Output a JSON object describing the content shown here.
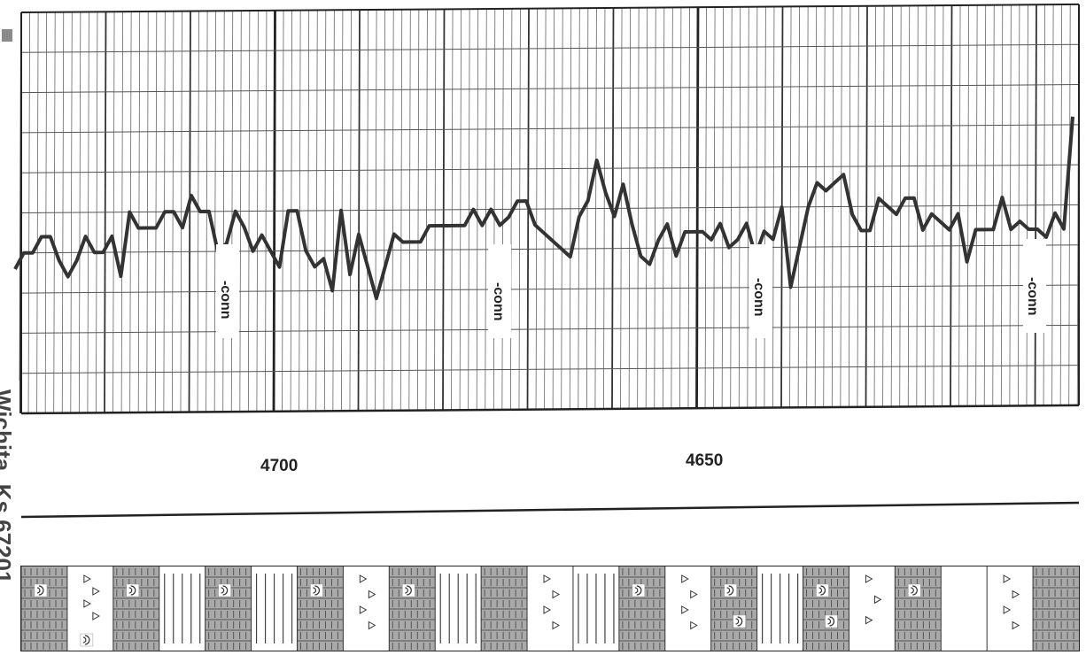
{
  "margin_text": "Wichita, Ks 67201",
  "depth_labels": [
    "4700",
    "4650"
  ],
  "annotation": "-conn",
  "log_curve": {
    "values": [
      0.36,
      0.4,
      0.4,
      0.44,
      0.44,
      0.38,
      0.34,
      0.38,
      0.44,
      0.4,
      0.4,
      0.44,
      0.34,
      0.5,
      0.46,
      0.46,
      0.46,
      0.5,
      0.5,
      0.46,
      0.54,
      0.5,
      0.5,
      0.4,
      0.42,
      0.5,
      0.46,
      0.4,
      0.44,
      0.4,
      0.36,
      0.5,
      0.5,
      0.4,
      0.36,
      0.38,
      0.3,
      0.5,
      0.34,
      0.44,
      0.36,
      0.28,
      0.36,
      0.44,
      0.42,
      0.42,
      0.42,
      0.46,
      0.46,
      0.46,
      0.46,
      0.46,
      0.5,
      0.46,
      0.5,
      0.46,
      0.48,
      0.52,
      0.52,
      0.46,
      0.44,
      0.42,
      0.4,
      0.38,
      0.48,
      0.52,
      0.62,
      0.54,
      0.48,
      0.56,
      0.46,
      0.38,
      0.36,
      0.42,
      0.46,
      0.38,
      0.44,
      0.44,
      0.44,
      0.42,
      0.46,
      0.4,
      0.42,
      0.46,
      0.38,
      0.44,
      0.42,
      0.5,
      0.3,
      0.4,
      0.5,
      0.56,
      0.54,
      0.56,
      0.58,
      0.48,
      0.44,
      0.44,
      0.52,
      0.5,
      0.48,
      0.52,
      0.52,
      0.44,
      0.48,
      0.46,
      0.44,
      0.48,
      0.36,
      0.44,
      0.44,
      0.44,
      0.52,
      0.44,
      0.46,
      0.44,
      0.44,
      0.42,
      0.48,
      0.44,
      0.72
    ],
    "color": "#333333"
  },
  "lithology_column": {
    "beds": [
      {
        "type": "shale",
        "symbols": [
          "fossil"
        ]
      },
      {
        "type": "sand",
        "symbols": [
          "triangle",
          "triangle",
          "triangle",
          "triangle",
          "fossil"
        ]
      },
      {
        "type": "shale",
        "symbols": [
          "fossil"
        ]
      },
      {
        "type": "limestone",
        "symbols": []
      },
      {
        "type": "shale",
        "symbols": [
          "fossil"
        ]
      },
      {
        "type": "limestone",
        "symbols": []
      },
      {
        "type": "shale",
        "symbols": [
          "fossil"
        ]
      },
      {
        "type": "sand",
        "symbols": [
          "triangle",
          "triangle",
          "triangle",
          "triangle"
        ]
      },
      {
        "type": "shale",
        "symbols": [
          "fossil"
        ]
      },
      {
        "type": "limestone",
        "symbols": []
      },
      {
        "type": "shale",
        "symbols": []
      },
      {
        "type": "sand",
        "symbols": [
          "triangle",
          "triangle",
          "triangle",
          "triangle"
        ]
      },
      {
        "type": "limestone",
        "symbols": []
      },
      {
        "type": "shale",
        "symbols": [
          "fossil"
        ]
      },
      {
        "type": "sand",
        "symbols": [
          "triangle",
          "triangle",
          "triangle",
          "triangle"
        ]
      },
      {
        "type": "shale",
        "symbols": [
          "fossil",
          "fossil"
        ]
      },
      {
        "type": "limestone",
        "symbols": []
      },
      {
        "type": "shale",
        "symbols": [
          "fossil",
          "fossil"
        ]
      },
      {
        "type": "sand",
        "symbols": [
          "triangle",
          "triangle",
          "triangle"
        ]
      },
      {
        "type": "shale",
        "symbols": [
          "fossil"
        ]
      },
      {
        "type": "blank",
        "symbols": []
      },
      {
        "type": "sand",
        "symbols": [
          "triangle",
          "triangle",
          "triangle",
          "triangle"
        ]
      },
      {
        "type": "shale",
        "symbols": []
      }
    ],
    "colors": {
      "shale": "#a9a9a9",
      "sand": "#ffffff",
      "limestone": "#ffffff",
      "blank": "#ffffff"
    }
  }
}
